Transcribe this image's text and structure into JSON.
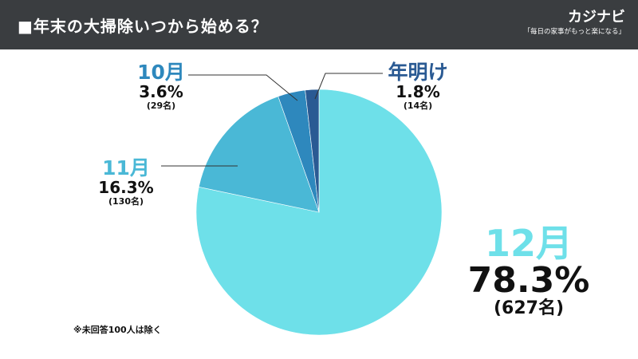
{
  "header": {
    "title": "■年末の大掃除いつから始める？",
    "brand": "カジナビ",
    "tagline": "「毎日の家事がもっと楽になる」"
  },
  "chart_data": {
    "type": "pie",
    "title": "■年末の大掃除いつから始める？",
    "categories": [
      "12月",
      "11月",
      "10月",
      "年明け"
    ],
    "values": [
      78.3,
      16.3,
      3.6,
      1.8
    ],
    "percent_labels": [
      "78.3%",
      "16.3%",
      "3.6%",
      "1.8%"
    ],
    "counts": [
      627,
      130,
      29,
      14
    ],
    "count_labels": [
      "(627名)",
      "(130名)",
      "(29名)",
      "(14名)"
    ],
    "colors": [
      "#6ee0e9",
      "#4ab8d6",
      "#2e88bd",
      "#2a5a93"
    ],
    "label_colors": [
      "#6ee0e9",
      "#4ab8d6",
      "#2e88bd",
      "#2a5a93"
    ],
    "start": "12 o'clock",
    "direction": "clockwise",
    "legend": "none"
  },
  "note": "※未回答100人は除く"
}
